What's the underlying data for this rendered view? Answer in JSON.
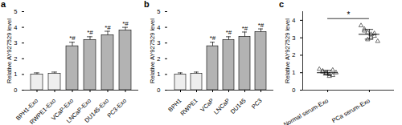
{
  "chart_data": [
    {
      "type": "bar",
      "title": "a",
      "y_label": "Relative AY927529 level",
      "categories": [
        "BPH1-Exo",
        "RWPE1-Exo",
        "VCaP-Exo",
        "LNCaP-Exo",
        "DU145-Exo",
        "PC3-Exo"
      ],
      "values": [
        1.0,
        1.05,
        2.8,
        3.2,
        3.5,
        3.8
      ],
      "errors": [
        0.1,
        0.1,
        0.25,
        0.2,
        0.25,
        0.2
      ],
      "colors": [
        "#eeeeee",
        "#eeeeee",
        "#b3b3b3",
        "#b3b3b3",
        "#b3b3b3",
        "#b3b3b3"
      ],
      "ylim": [
        0,
        5
      ],
      "yticks": [
        0,
        1,
        2,
        3,
        4,
        5
      ],
      "annotations": [
        {
          "text": "*#",
          "category": "VCaP-Exo"
        },
        {
          "text": "*#",
          "category": "LNCaP-Exo"
        },
        {
          "text": "*#",
          "category": "DU145-Exo"
        },
        {
          "text": "*#",
          "category": "PC3-Exo"
        }
      ]
    },
    {
      "type": "bar",
      "title": "b",
      "y_label": "Relative AY927529 level",
      "categories": [
        "BPH1",
        "RWPE1",
        "VCaP",
        "LNCaP",
        "DU145",
        "PC3"
      ],
      "values": [
        1.0,
        1.05,
        2.8,
        3.2,
        3.4,
        3.7
      ],
      "errors": [
        0.1,
        0.1,
        0.25,
        0.2,
        0.3,
        0.2
      ],
      "colors": [
        "#eeeeee",
        "#eeeeee",
        "#b3b3b3",
        "#b3b3b3",
        "#b3b3b3",
        "#b3b3b3"
      ],
      "ylim": [
        0,
        5
      ],
      "yticks": [
        0,
        1,
        2,
        3,
        4,
        5
      ],
      "annotations": [
        {
          "text": "*#",
          "category": "VCaP"
        },
        {
          "text": "*#",
          "category": "LNCaP"
        },
        {
          "text": "*#",
          "category": "DU145"
        },
        {
          "text": "*#",
          "category": "PC3"
        }
      ]
    },
    {
      "type": "scatter",
      "title": "c",
      "y_label": "Relative AY927529 level",
      "categories": [
        "Normal serum-Exo",
        "PCa serum-Exo"
      ],
      "points": [
        [
          1.2,
          1.1,
          1.0,
          0.9,
          0.85,
          1.05,
          0.95,
          0.8,
          1.15,
          1.0
        ],
        [
          3.7,
          3.5,
          3.3,
          3.2,
          3.1,
          3.4,
          2.9,
          3.0,
          3.25,
          2.8
        ]
      ],
      "means": [
        1.0,
        3.2
      ],
      "errors": [
        0.13,
        0.28
      ],
      "color": "#333333",
      "marker": "triangle",
      "ylim": [
        0,
        4.5
      ],
      "yticks": [
        0,
        1,
        2,
        3,
        4
      ],
      "annotations": [
        {
          "text": "*",
          "between": [
            "Normal serum-Exo",
            "PCa serum-Exo"
          ]
        }
      ]
    }
  ]
}
